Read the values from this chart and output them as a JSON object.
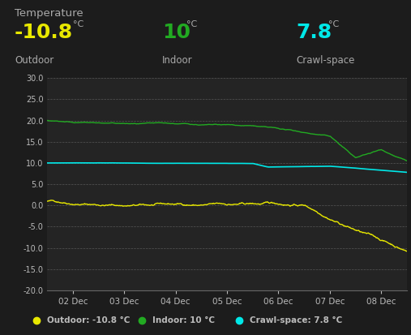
{
  "title": "Temperature",
  "outdoor_val": "-10.8",
  "indoor_val": "10",
  "crawl_val": "7.8",
  "outdoor_color": "#e8e800",
  "indoor_color": "#22aa22",
  "crawl_color": "#00e8e8",
  "bg_color": "#1c1c1c",
  "plot_bg_color": "#242424",
  "grid_color": "#555555",
  "text_color": "#bbbbbb",
  "label_color": "#888888",
  "ylim": [
    -20.0,
    30.0
  ],
  "yticks": [
    -20.0,
    -15.0,
    -10.0,
    -5.0,
    0.0,
    5.0,
    10.0,
    15.0,
    20.0,
    25.0,
    30.0
  ],
  "x_labels": [
    "02 Dec",
    "03 Dec",
    "04 Dec",
    "05 Dec",
    "06 Dec",
    "07 Dec",
    "08 Dec"
  ],
  "n_points": 700
}
